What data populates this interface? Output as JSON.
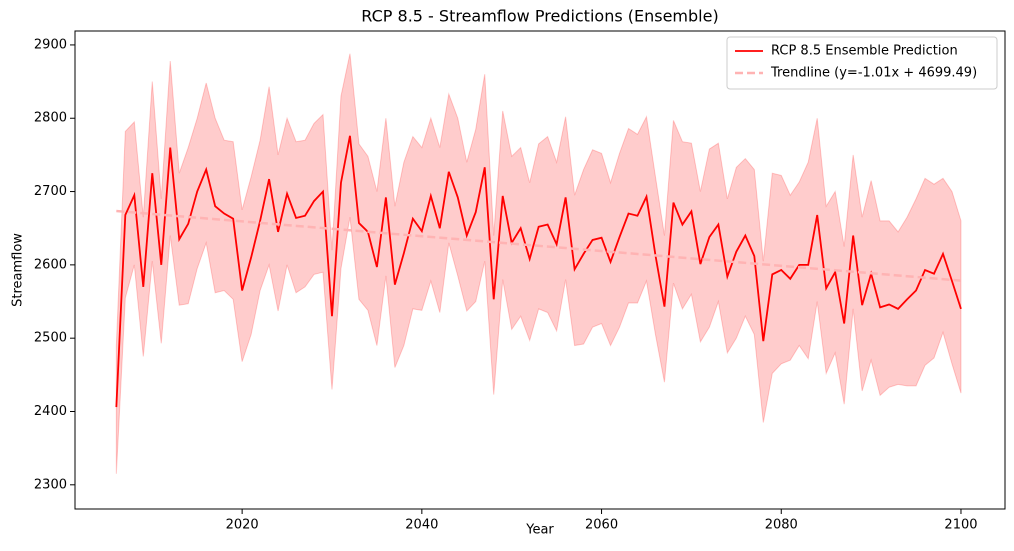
{
  "chart_data": {
    "type": "line",
    "title": "RCP 8.5 - Streamflow Predictions (Ensemble)",
    "x_label": "Year",
    "y_label": "Streamflow",
    "x": [
      2006,
      2007,
      2008,
      2009,
      2010,
      2011,
      2012,
      2013,
      2014,
      2015,
      2016,
      2017,
      2018,
      2019,
      2020,
      2021,
      2022,
      2023,
      2024,
      2025,
      2026,
      2027,
      2028,
      2029,
      2030,
      2031,
      2032,
      2033,
      2034,
      2035,
      2036,
      2037,
      2038,
      2039,
      2040,
      2041,
      2042,
      2043,
      2044,
      2045,
      2046,
      2047,
      2048,
      2049,
      2050,
      2051,
      2052,
      2053,
      2054,
      2055,
      2056,
      2057,
      2058,
      2059,
      2060,
      2061,
      2062,
      2063,
      2064,
      2065,
      2066,
      2067,
      2068,
      2069,
      2070,
      2071,
      2072,
      2073,
      2074,
      2075,
      2076,
      2077,
      2078,
      2079,
      2080,
      2081,
      2082,
      2083,
      2084,
      2085,
      2086,
      2087,
      2088,
      2089,
      2090,
      2091,
      2092,
      2093,
      2094,
      2095,
      2096,
      2097,
      2098,
      2099,
      2100
    ],
    "band": {
      "color": "#ff0000",
      "upper": [
        2490,
        2782,
        2795,
        2665,
        2850,
        2690,
        2878,
        2725,
        2760,
        2800,
        2848,
        2800,
        2770,
        2768,
        2675,
        2720,
        2770,
        2843,
        2750,
        2800,
        2768,
        2770,
        2793,
        2805,
        2620,
        2830,
        2888,
        2765,
        2748,
        2700,
        2800,
        2680,
        2740,
        2775,
        2760,
        2800,
        2760,
        2833,
        2800,
        2740,
        2785,
        2860,
        2640,
        2810,
        2748,
        2760,
        2712,
        2765,
        2775,
        2740,
        2802,
        2695,
        2730,
        2757,
        2752,
        2712,
        2752,
        2786,
        2778,
        2802,
        2720,
        2640,
        2797,
        2768,
        2766,
        2700,
        2758,
        2766,
        2690,
        2733,
        2745,
        2730,
        2605,
        2725,
        2722,
        2695,
        2713,
        2740,
        2800,
        2680,
        2700,
        2625,
        2750,
        2665,
        2715,
        2660,
        2660,
        2645,
        2665,
        2690,
        2718,
        2710,
        2718,
        2700,
        2660
      ],
      "lower": [
        2315,
        2555,
        2600,
        2475,
        2605,
        2493,
        2640,
        2545,
        2547,
        2595,
        2630,
        2562,
        2565,
        2553,
        2468,
        2505,
        2565,
        2600,
        2537,
        2600,
        2562,
        2570,
        2587,
        2590,
        2430,
        2595,
        2665,
        2553,
        2538,
        2490,
        2585,
        2460,
        2490,
        2540,
        2538,
        2578,
        2535,
        2630,
        2585,
        2537,
        2550,
        2605,
        2423,
        2580,
        2512,
        2530,
        2497,
        2540,
        2535,
        2510,
        2580,
        2490,
        2492,
        2515,
        2520,
        2490,
        2515,
        2548,
        2548,
        2578,
        2505,
        2440,
        2575,
        2540,
        2560,
        2495,
        2515,
        2550,
        2480,
        2500,
        2530,
        2505,
        2385,
        2452,
        2465,
        2470,
        2490,
        2472,
        2550,
        2452,
        2480,
        2410,
        2540,
        2428,
        2470,
        2422,
        2433,
        2437,
        2435,
        2435,
        2463,
        2473,
        2508,
        2465,
        2425
      ]
    },
    "series": [
      {
        "name": "RCP 8.5 Ensemble Prediction",
        "color": "#ff0000",
        "values": [
          2406,
          2668,
          2695,
          2570,
          2725,
          2600,
          2760,
          2635,
          2656,
          2700,
          2730,
          2680,
          2670,
          2663,
          2565,
          2610,
          2660,
          2717,
          2645,
          2697,
          2664,
          2667,
          2687,
          2700,
          2530,
          2712,
          2776,
          2657,
          2645,
          2597,
          2692,
          2573,
          2616,
          2663,
          2646,
          2694,
          2650,
          2727,
          2692,
          2640,
          2672,
          2733,
          2553,
          2694,
          2630,
          2650,
          2608,
          2652,
          2655,
          2628,
          2692,
          2594,
          2615,
          2634,
          2637,
          2604,
          2638,
          2670,
          2667,
          2693,
          2613,
          2543,
          2685,
          2655,
          2673,
          2601,
          2638,
          2655,
          2584,
          2618,
          2640,
          2612,
          2496,
          2587,
          2593,
          2581,
          2600,
          2600,
          2668,
          2568,
          2590,
          2520,
          2640,
          2545,
          2588,
          2542,
          2546,
          2540,
          2553,
          2565,
          2593,
          2588,
          2615,
          2578,
          2540
        ]
      },
      {
        "name": "Trendline (y=-1.01x + 4699.49)",
        "color": "#ffb3b3",
        "dashed": true,
        "x": [
          2006,
          2100
        ],
        "values": [
          2673.43,
          2578.49
        ]
      }
    ],
    "xlim": [
      2001.4,
      2104.9
    ],
    "ylim": [
      2267,
      2919
    ],
    "xticks": [
      2020,
      2040,
      2060,
      2080,
      2100
    ],
    "yticks": [
      2300,
      2400,
      2500,
      2600,
      2700,
      2800,
      2900
    ],
    "legend": "upper right"
  }
}
